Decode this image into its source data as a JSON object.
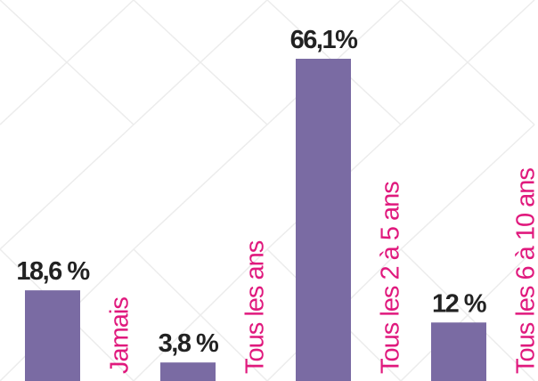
{
  "chart_data": {
    "type": "bar",
    "categories": [
      "Jamais",
      "Tous les ans",
      "Tous les 2 à 5 ans",
      "Tous les 6 à 10 ans"
    ],
    "values": [
      18.6,
      3.8,
      66.1,
      12
    ],
    "value_labels": [
      "18,6 %",
      "3,8 %",
      "66,1%",
      "12 %"
    ],
    "color": "#7a6ba3",
    "category_color": "#e0197d"
  }
}
